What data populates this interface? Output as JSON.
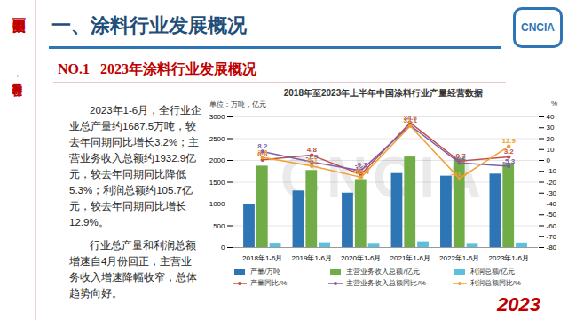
{
  "slide": {
    "sidebar_top": "美丽中国",
    "sidebar_bottom": "涂料行业·在行动",
    "logo": "CNCIA",
    "title": "一、涂料行业发展概况",
    "subtitle": "NO.1   2023年涂料行业发展概况",
    "paragraphs": [
      "2023年1-6月，全行业企业总产量约1687.5万吨，较去年同期同比增长3.2%；主营业务收入总额约1932.9亿元，较去年同期同比降低5.3%；利润总额约105.7亿元，较去年同期同比增长12.9%。",
      "行业总产量和利润总额增速自4月份回正，主营业务收入增速降幅收窄，总体趋势向好。"
    ],
    "corner": "2023"
  },
  "chart_data": {
    "type": "bar",
    "title": "2018年至2023年上半年中国涂料行业产量经营数据",
    "watermark": "CNCIA",
    "ylabel": "单位：万吨，亿元",
    "y2label": "%",
    "categories": [
      "2018年1-6月",
      "2019年1-6月",
      "2020年1-6月",
      "2021年1-6月",
      "2022年1-6月",
      "2023年1-6月"
    ],
    "series": [
      {
        "name": "产量/万吨",
        "type": "bar",
        "color": "#2e75b6",
        "values": [
          1000,
          1300,
          1250,
          1700,
          1640,
          1687.5
        ],
        "data_labels": false
      },
      {
        "name": "主营业务收入总额/亿元",
        "type": "bar",
        "color": "#70ad47",
        "values": [
          1870,
          1770,
          1560,
          2080,
          2040,
          1932.9
        ],
        "data_labels": false
      },
      {
        "name": "利润总额/亿元",
        "type": "bar",
        "color": "#5bc0de",
        "values": [
          100,
          110,
          95,
          130,
          94,
          105.7
        ],
        "data_labels": false
      },
      {
        "name": "产量同比/%",
        "type": "line",
        "axis": "y2",
        "color": "#c0504d",
        "marker": "circle",
        "line_style": "solid",
        "values": [
          0.6,
          4.8,
          -12.9,
          34.6,
          -0.7,
          3.2
        ],
        "data_labels": true
      },
      {
        "name": "主营业务收入总额同比/%",
        "type": "line",
        "axis": "y2",
        "color": "#7f5fa8",
        "marker": "circle",
        "line_style": "solid",
        "values": [
          8.2,
          -1.5,
          -9.3,
          32.1,
          -2.2,
          -5.3
        ],
        "data_labels": true
      },
      {
        "name": "利润总额同比/%",
        "type": "line",
        "axis": "y2",
        "color": "#f0a030",
        "marker": "circle",
        "line_style": "solid",
        "values": [
          2.8,
          -5.1,
          -15.4,
          31.7,
          -16.7,
          12.9
        ],
        "data_labels": true
      }
    ],
    "ylim": [
      0,
      3000
    ],
    "yticks": [
      0,
      500,
      1000,
      1500,
      2000,
      2500,
      3000
    ],
    "y2lim": [
      -80,
      40
    ],
    "y2ticks": [
      -80,
      -70,
      -60,
      -50,
      -40,
      -30,
      -20,
      -10,
      0,
      10,
      20,
      30,
      40
    ],
    "grid": true,
    "legend": "bottom"
  }
}
